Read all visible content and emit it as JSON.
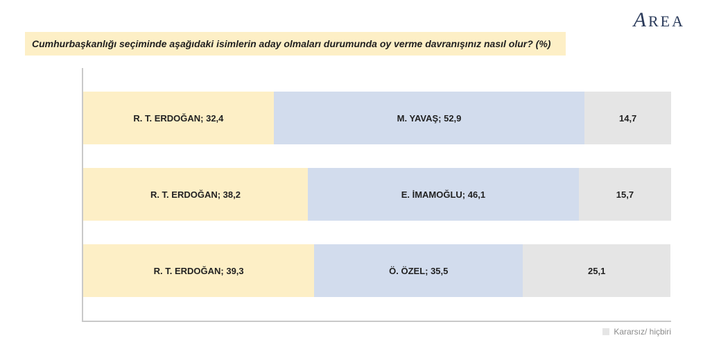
{
  "logo": {
    "text": "REA"
  },
  "title": "Cumhurbaşkanlığı seçiminde aşağıdaki isimlerin aday olmaları durumunda oy verme davranışınız nasıl olur? (%)",
  "chart": {
    "type": "stacked-bar-horizontal",
    "decimal_separator": ",",
    "colors": {
      "erdogan": "#fdefc6",
      "opponent": "#d2dced",
      "undecided": "#e5e5e5",
      "axis": "#c9c9c9",
      "text": "#222222",
      "legend_text": "#8a8a8a"
    },
    "label_fontsize": 13,
    "label_fontweight": "bold",
    "rows": [
      {
        "segments": [
          {
            "key": "erdogan",
            "label": "R. T. ERDOĞAN; 32,4",
            "value": 32.4
          },
          {
            "key": "opponent",
            "label": "M. YAVAŞ; 52,9",
            "value": 52.9
          },
          {
            "key": "undecided",
            "label": "14,7",
            "value": 14.7
          }
        ]
      },
      {
        "segments": [
          {
            "key": "erdogan",
            "label": "R. T. ERDOĞAN; 38,2",
            "value": 38.2
          },
          {
            "key": "opponent",
            "label": "E. İMAMOĞLU; 46,1",
            "value": 46.1
          },
          {
            "key": "undecided",
            "label": "15,7",
            "value": 15.7
          }
        ]
      },
      {
        "segments": [
          {
            "key": "erdogan",
            "label": "R. T. ERDOĞAN; 39,3",
            "value": 39.3
          },
          {
            "key": "opponent",
            "label": "Ö. ÖZEL; 35,5",
            "value": 35.5
          },
          {
            "key": "undecided",
            "label": "25,1",
            "value": 25.1
          }
        ]
      }
    ]
  },
  "legend": {
    "swatch_color": "#e5e5e5",
    "label": "Kararsız/ hiçbiri"
  }
}
